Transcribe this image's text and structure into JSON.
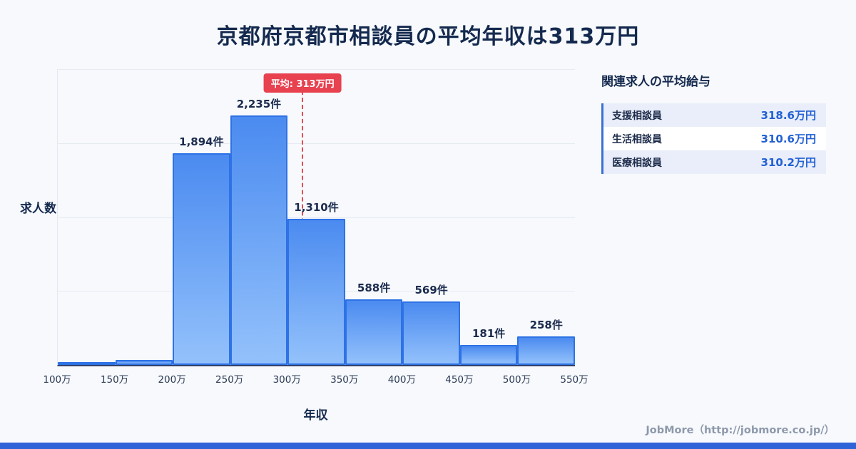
{
  "title": "京都府京都市相談員の平均年収は313万円",
  "chart_data": {
    "type": "bar",
    "title": "京都府京都市相談員の平均年収は313万円",
    "xlabel": "年収",
    "ylabel": "求人数",
    "bin_edges": [
      "100万",
      "150万",
      "200万",
      "250万",
      "300万",
      "350万",
      "400万",
      "450万",
      "500万",
      "550万"
    ],
    "values": [
      20,
      45,
      1894,
      2235,
      1310,
      588,
      569,
      181,
      258
    ],
    "bar_labels": [
      "",
      "",
      "1,894件",
      "2,235件",
      "1,310件",
      "588件",
      "569件",
      "181件",
      "258件"
    ],
    "x_range": [
      100,
      550
    ],
    "ylim": [
      0,
      2650
    ],
    "grid": "faint horizontal",
    "average": {
      "value": 313,
      "label": "平均: 313万円"
    }
  },
  "side_panel": {
    "title": "関連求人の平均給与",
    "rows": [
      {
        "label": "支援相談員",
        "value": "318.6万円"
      },
      {
        "label": "生活相談員",
        "value": "310.6万円"
      },
      {
        "label": "医療相談員",
        "value": "310.2万円"
      }
    ]
  },
  "footer": {
    "credit": "JobMore（http://jobmore.co.jp/）"
  },
  "colors": {
    "background": "#f7f9fc",
    "title_text": "#14294e",
    "bar_top": "#4b8bf0",
    "bar_bottom": "#93c1fb",
    "bar_border": "#2e72e5",
    "average_line": "#e05055",
    "average_badge_bg": "#e8414f",
    "table_row_alt_bg": "#e9eefa",
    "table_accent_border": "#3b6fd4",
    "value_text": "#2160d4",
    "accent_bar": "#2f63d8"
  }
}
